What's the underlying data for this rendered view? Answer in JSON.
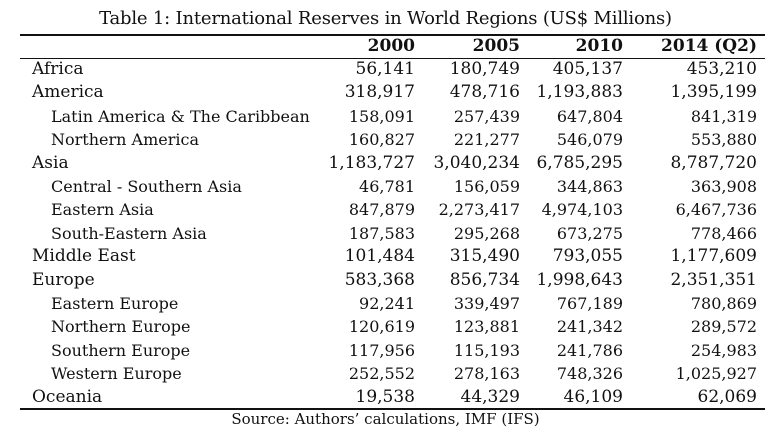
{
  "title": "Table 1: International Reserves in World Regions (US$ Millions)",
  "columns": [
    "",
    "2000",
    "2005",
    "2010",
    "2014 (Q2)"
  ],
  "rows": [
    {
      "label": "Africa",
      "sub": false,
      "values": [
        "56,141",
        "180,749",
        "405,137",
        "453,210"
      ]
    },
    {
      "label": "America",
      "sub": false,
      "values": [
        "318,917",
        "478,716",
        "1,193,883",
        "1,395,199"
      ]
    },
    {
      "label": "Latin America & The Caribbean",
      "sub": true,
      "values": [
        "158,091",
        "257,439",
        "647,804",
        "841,319"
      ]
    },
    {
      "label": "Northern America",
      "sub": true,
      "values": [
        "160,827",
        "221,277",
        "546,079",
        "553,880"
      ]
    },
    {
      "label": "Asia",
      "sub": false,
      "values": [
        "1,183,727",
        "3,040,234",
        "6,785,295",
        "8,787,720"
      ]
    },
    {
      "label": "Central - Southern Asia",
      "sub": true,
      "values": [
        "46,781",
        "156,059",
        "344,863",
        "363,908"
      ]
    },
    {
      "label": "Eastern Asia",
      "sub": true,
      "values": [
        "847,879",
        "2,273,417",
        "4,974,103",
        "6,467,736"
      ]
    },
    {
      "label": "South-Eastern Asia",
      "sub": true,
      "values": [
        "187,583",
        "295,268",
        "673,275",
        "778,466"
      ]
    },
    {
      "label": "Middle East",
      "sub": false,
      "values": [
        "101,484",
        "315,490",
        "793,055",
        "1,177,609"
      ]
    },
    {
      "label": "Europe",
      "sub": false,
      "values": [
        "583,368",
        "856,734",
        "1,998,643",
        "2,351,351"
      ]
    },
    {
      "label": "Eastern Europe",
      "sub": true,
      "values": [
        "92,241",
        "339,497",
        "767,189",
        "780,869"
      ]
    },
    {
      "label": "Northern Europe",
      "sub": true,
      "values": [
        "120,619",
        "123,881",
        "241,342",
        "289,572"
      ]
    },
    {
      "label": "Southern Europe",
      "sub": true,
      "values": [
        "117,956",
        "115,193",
        "241,786",
        "254,983"
      ]
    },
    {
      "label": "Western Europe",
      "sub": true,
      "values": [
        "252,552",
        "278,163",
        "748,326",
        "1,025,927"
      ]
    },
    {
      "label": "Oceania",
      "sub": false,
      "values": [
        "19,538",
        "44,329",
        "46,109",
        "62,069"
      ]
    }
  ],
  "source": "Source: Authors’ calculations, IMF (IFS)"
}
